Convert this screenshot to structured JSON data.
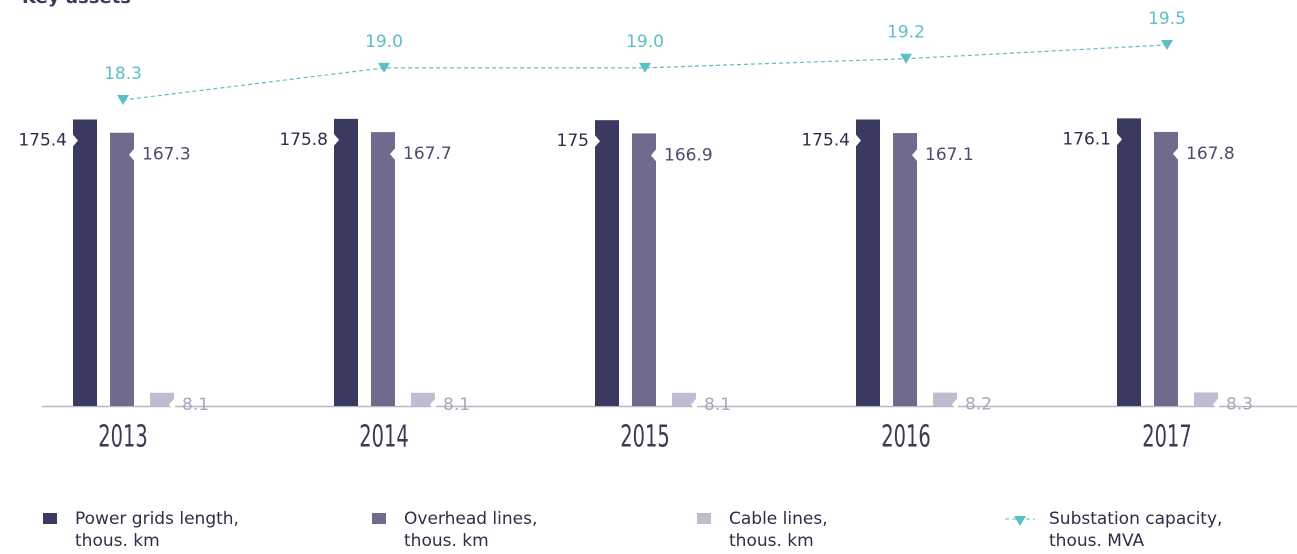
{
  "chart_data": {
    "type": "bar",
    "title": "Key assets",
    "categories": [
      "2013",
      "2014",
      "2015",
      "2016",
      "2017"
    ],
    "ylim": [
      0,
      180
    ],
    "y2lim": [
      18,
      20
    ],
    "series": [
      {
        "name": "Power grids length, thous. km",
        "color": "#3a3a60",
        "values": [
          175.4,
          175.8,
          175.0,
          175.4,
          176.1
        ]
      },
      {
        "name": "Overhead lines, thous. km",
        "color": "#6e6b8c",
        "values": [
          167.3,
          167.7,
          166.9,
          167.1,
          167.8
        ]
      },
      {
        "name": "Cable lines, thous. km",
        "color": "#c0bdd0",
        "values": [
          8.1,
          8.1,
          8.1,
          8.2,
          8.3
        ]
      },
      {
        "name": "Substation capacity, thous. MVA",
        "color": "#5bbfc8",
        "type": "line",
        "axis": "y2",
        "values": [
          18.3,
          19.0,
          19.0,
          19.2,
          19.5
        ],
        "value_labels": [
          "18.3",
          "19.0",
          "19.0",
          "19.2",
          "19.5"
        ]
      }
    ]
  }
}
